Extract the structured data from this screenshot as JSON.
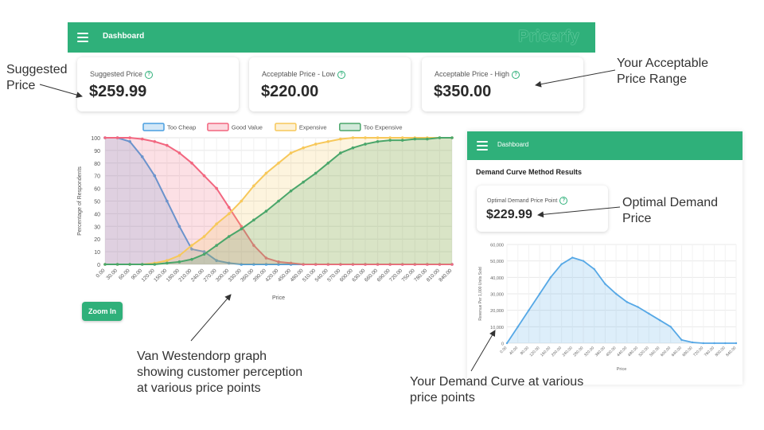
{
  "header": {
    "title": "Dashboard",
    "brand": "Pricerfy"
  },
  "cards": [
    {
      "label": "Suggested Price",
      "value": "$259.99"
    },
    {
      "label": "Acceptable Price - Low",
      "value": "$220.00"
    },
    {
      "label": "Acceptable Price - High",
      "value": "$350.00"
    }
  ],
  "annotations": {
    "suggested": [
      "Suggested",
      "Price"
    ],
    "range": [
      "Your Acceptable",
      "Price Range"
    ],
    "optimal": [
      "Optimal Demand",
      "Price"
    ],
    "vw": [
      "Van Westendorp graph",
      "showing customer perception",
      "at various price points"
    ],
    "demand": [
      "Your Demand Curve at various",
      "price points"
    ]
  },
  "zoom_label": "Zoom In",
  "demand": {
    "header_title": "Dashboard",
    "heading": "Demand Curve Method Results",
    "card_label": "Optimal Demand Price Point",
    "card_value": "$229.99"
  },
  "colors": {
    "brand": "#2fb07a",
    "too_cheap": "#4a9fe0",
    "good_value": "#f2667f",
    "expensive": "#f7c85a",
    "too_expensive": "#4aa66a",
    "demand": "#56a8e6"
  },
  "chart_data": [
    {
      "type": "line",
      "title": "",
      "xlabel": "Price",
      "ylabel": "Percentage of Respondents",
      "ylim": [
        0,
        100
      ],
      "yticks": [
        "0",
        "10",
        "20",
        "30",
        "40",
        "50",
        "60",
        "70",
        "80",
        "90",
        "100"
      ],
      "x": [
        0,
        30,
        60,
        90,
        120,
        150,
        180,
        210,
        240,
        270,
        300,
        330,
        360,
        390,
        420,
        450,
        480,
        510,
        540,
        570,
        600,
        630,
        660,
        690,
        720,
        750,
        780,
        810,
        840
      ],
      "xtick_labels": [
        "0.00",
        "30.00",
        "60.00",
        "90.00",
        "120.00",
        "150.00",
        "180.00",
        "210.00",
        "240.00",
        "270.00",
        "300.00",
        "330.00",
        "360.00",
        "390.00",
        "420.00",
        "450.00",
        "480.00",
        "510.00",
        "540.00",
        "570.00",
        "600.00",
        "630.00",
        "660.00",
        "690.00",
        "720.00",
        "750.00",
        "780.00",
        "810.00",
        "840.00"
      ],
      "legend_position": "top",
      "fill": true,
      "series": [
        {
          "name": "Too Cheap",
          "values": [
            100,
            100,
            97,
            85,
            70,
            50,
            30,
            12,
            10,
            3,
            1,
            0,
            0,
            0,
            0,
            0,
            0,
            0,
            0,
            0,
            0,
            0,
            0,
            0,
            0,
            0,
            0,
            0,
            0
          ]
        },
        {
          "name": "Good Value",
          "values": [
            100,
            100,
            100,
            99,
            97,
            94,
            88,
            80,
            70,
            60,
            45,
            30,
            15,
            5,
            2,
            1,
            0,
            0,
            0,
            0,
            0,
            0,
            0,
            0,
            0,
            0,
            0,
            0,
            0
          ]
        },
        {
          "name": "Expensive",
          "values": [
            0,
            0,
            0,
            0,
            1,
            3,
            7,
            15,
            22,
            32,
            40,
            50,
            62,
            72,
            80,
            88,
            92,
            95,
            97,
            99,
            100,
            100,
            100,
            100,
            100,
            100,
            100,
            100,
            100
          ]
        },
        {
          "name": "Too Expensive",
          "values": [
            0,
            0,
            0,
            0,
            0,
            1,
            2,
            4,
            8,
            15,
            22,
            28,
            35,
            42,
            50,
            58,
            65,
            72,
            80,
            88,
            92,
            95,
            97,
            98,
            98,
            99,
            99,
            100,
            100
          ]
        }
      ]
    },
    {
      "type": "area",
      "title": "",
      "xlabel": "Price",
      "ylabel": "Revenue Per 1,000 Units Sold",
      "ylim": [
        0,
        60000
      ],
      "yticks": [
        "0",
        "10,000",
        "20,000",
        "30,000",
        "40,000",
        "50,000",
        "60,000"
      ],
      "x": [
        0,
        40,
        80,
        120,
        160,
        200,
        240,
        280,
        320,
        360,
        400,
        440,
        480,
        520,
        560,
        600,
        640,
        680,
        720,
        760,
        800,
        840
      ],
      "xtick_labels": [
        "0.00",
        "40.00",
        "80.00",
        "120.00",
        "160.00",
        "200.00",
        "240.00",
        "280.00",
        "320.00",
        "360.00",
        "400.00",
        "440.00",
        "480.00",
        "520.00",
        "560.00",
        "600.00",
        "640.00",
        "680.00",
        "720.00",
        "760.00",
        "800.00",
        "840.00"
      ],
      "values": [
        0,
        10000,
        20000,
        30000,
        40000,
        48000,
        52000,
        50000,
        45000,
        36000,
        30000,
        25000,
        22000,
        18000,
        14000,
        10000,
        2000,
        500,
        0,
        0,
        0,
        0
      ]
    }
  ]
}
